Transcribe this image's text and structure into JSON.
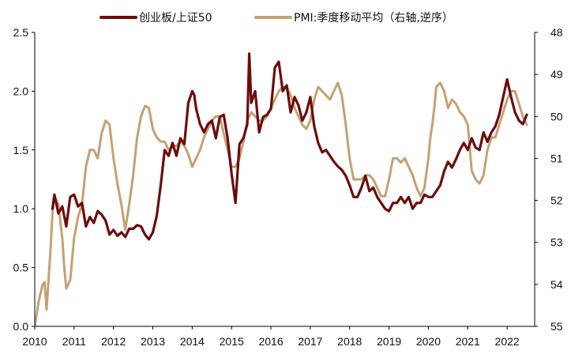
{
  "chart_data": {
    "type": "line",
    "title": "",
    "legend_position": "top",
    "grid": false,
    "x_ticks": [
      "2010",
      "2011",
      "2012",
      "2013",
      "2014",
      "2015",
      "2016",
      "2017",
      "2018",
      "2019",
      "2020",
      "2021",
      "2022"
    ],
    "xlim": [
      2010.0,
      2022.7
    ],
    "left_axis": {
      "range": [
        0.0,
        2.5
      ],
      "ticks": [
        "0.0",
        "0.5",
        "1.0",
        "1.5",
        "2.0",
        "2.5"
      ]
    },
    "right_axis": {
      "range": [
        48,
        55
      ],
      "inverted": true,
      "ticks": [
        "48",
        "49",
        "50",
        "51",
        "52",
        "53",
        "54",
        "55"
      ]
    },
    "series": [
      {
        "name": "创业板/上证50",
        "axis": "left",
        "color": "#6b0d0d",
        "x": [
          2010.45,
          2010.5,
          2010.6,
          2010.7,
          2010.8,
          2010.9,
          2011.0,
          2011.1,
          2011.2,
          2011.3,
          2011.4,
          2011.5,
          2011.6,
          2011.7,
          2011.8,
          2011.9,
          2012.0,
          2012.1,
          2012.2,
          2012.3,
          2012.4,
          2012.5,
          2012.6,
          2012.7,
          2012.8,
          2012.9,
          2013.0,
          2013.1,
          2013.2,
          2013.3,
          2013.4,
          2013.5,
          2013.6,
          2013.7,
          2013.8,
          2013.9,
          2014.0,
          2014.05,
          2014.1,
          2014.2,
          2014.3,
          2014.4,
          2014.5,
          2014.6,
          2014.7,
          2014.8,
          2014.9,
          2015.0,
          2015.1,
          2015.2,
          2015.3,
          2015.4,
          2015.45,
          2015.5,
          2015.6,
          2015.7,
          2015.8,
          2015.9,
          2016.0,
          2016.1,
          2016.2,
          2016.3,
          2016.4,
          2016.5,
          2016.6,
          2016.7,
          2016.8,
          2016.9,
          2017.0,
          2017.1,
          2017.2,
          2017.3,
          2017.4,
          2017.5,
          2017.6,
          2017.7,
          2017.8,
          2017.9,
          2018.0,
          2018.1,
          2018.2,
          2018.3,
          2018.4,
          2018.5,
          2018.6,
          2018.7,
          2018.8,
          2018.9,
          2019.0,
          2019.1,
          2019.2,
          2019.3,
          2019.4,
          2019.5,
          2019.6,
          2019.7,
          2019.8,
          2019.9,
          2020.0,
          2020.1,
          2020.2,
          2020.3,
          2020.4,
          2020.5,
          2020.6,
          2020.7,
          2020.8,
          2020.9,
          2021.0,
          2021.1,
          2021.2,
          2021.3,
          2021.4,
          2021.5,
          2021.6,
          2021.7,
          2021.8,
          2021.9,
          2022.0,
          2022.1,
          2022.2,
          2022.3,
          2022.4,
          2022.5
        ],
        "values": [
          1.0,
          1.12,
          0.96,
          1.02,
          0.85,
          1.1,
          1.12,
          1.02,
          1.05,
          0.85,
          0.93,
          0.88,
          0.98,
          0.95,
          0.9,
          0.78,
          0.82,
          0.77,
          0.8,
          0.76,
          0.83,
          0.83,
          0.86,
          0.85,
          0.78,
          0.74,
          0.8,
          0.94,
          1.2,
          1.5,
          1.45,
          1.56,
          1.45,
          1.6,
          1.55,
          1.9,
          2.0,
          1.97,
          1.85,
          1.72,
          1.65,
          1.72,
          1.75,
          1.6,
          1.78,
          1.8,
          1.6,
          1.3,
          1.05,
          1.55,
          1.6,
          1.72,
          2.32,
          1.9,
          2.0,
          1.65,
          1.78,
          1.8,
          1.85,
          2.2,
          2.25,
          2.0,
          2.05,
          1.82,
          1.95,
          1.88,
          1.75,
          1.82,
          1.95,
          1.7,
          1.56,
          1.48,
          1.5,
          1.45,
          1.4,
          1.36,
          1.33,
          1.28,
          1.2,
          1.1,
          1.1,
          1.18,
          1.28,
          1.15,
          1.18,
          1.1,
          1.05,
          1.0,
          0.98,
          1.05,
          1.05,
          1.1,
          1.05,
          1.1,
          1.0,
          1.05,
          1.05,
          1.12,
          1.1,
          1.1,
          1.15,
          1.2,
          1.32,
          1.4,
          1.35,
          1.42,
          1.5,
          1.56,
          1.5,
          1.6,
          1.52,
          1.5,
          1.65,
          1.57,
          1.65,
          1.7,
          1.8,
          1.95,
          2.1,
          1.95,
          1.82,
          1.75,
          1.72,
          1.8
        ]
      },
      {
        "name": "PMI:季度移动平均（右轴,逆序）",
        "axis": "right",
        "color": "#c4a173",
        "x": [
          2010.0,
          2010.1,
          2010.2,
          2010.25,
          2010.3,
          2010.4,
          2010.45,
          2010.5,
          2010.6,
          2010.7,
          2010.75,
          2010.8,
          2010.9,
          2011.0,
          2011.1,
          2011.2,
          2011.3,
          2011.4,
          2011.5,
          2011.6,
          2011.7,
          2011.8,
          2011.9,
          2012.0,
          2012.1,
          2012.2,
          2012.3,
          2012.4,
          2012.5,
          2012.6,
          2012.7,
          2012.8,
          2012.9,
          2013.0,
          2013.1,
          2013.2,
          2013.3,
          2013.4,
          2013.5,
          2013.6,
          2013.7,
          2013.8,
          2013.9,
          2014.0,
          2014.1,
          2014.2,
          2014.3,
          2014.4,
          2014.5,
          2014.6,
          2014.7,
          2014.8,
          2014.9,
          2015.0,
          2015.1,
          2015.2,
          2015.3,
          2015.4,
          2015.5,
          2015.6,
          2015.7,
          2015.8,
          2015.9,
          2016.0,
          2016.1,
          2016.2,
          2016.3,
          2016.4,
          2016.5,
          2016.6,
          2016.7,
          2016.8,
          2016.9,
          2017.0,
          2017.1,
          2017.2,
          2017.3,
          2017.4,
          2017.5,
          2017.6,
          2017.7,
          2017.8,
          2017.9,
          2018.0,
          2018.1,
          2018.2,
          2018.3,
          2018.4,
          2018.5,
          2018.6,
          2018.7,
          2018.8,
          2018.9,
          2019.0,
          2019.1,
          2019.2,
          2019.3,
          2019.4,
          2019.5,
          2019.6,
          2019.7,
          2019.8,
          2019.9,
          2020.0,
          2020.05,
          2020.1,
          2020.15,
          2020.2,
          2020.3,
          2020.4,
          2020.5,
          2020.6,
          2020.7,
          2020.8,
          2020.9,
          2021.0,
          2021.1,
          2021.2,
          2021.3,
          2021.4,
          2021.5,
          2021.6,
          2021.7,
          2021.8,
          2021.9,
          2022.0,
          2022.1,
          2022.2,
          2022.3,
          2022.4,
          2022.5
        ],
        "values": [
          55.0,
          54.4,
          54.0,
          53.95,
          54.6,
          53.2,
          52.3,
          51.9,
          52.1,
          52.9,
          53.6,
          54.1,
          53.9,
          52.9,
          52.4,
          52.1,
          51.2,
          50.8,
          50.8,
          51.0,
          50.4,
          50.1,
          50.2,
          51.0,
          51.6,
          52.1,
          52.7,
          52.1,
          51.4,
          50.5,
          50.0,
          49.75,
          49.8,
          50.3,
          50.5,
          50.6,
          50.6,
          50.8,
          50.7,
          50.7,
          50.6,
          50.7,
          50.9,
          51.2,
          51.0,
          50.8,
          50.5,
          50.3,
          50.1,
          50.0,
          50.0,
          50.4,
          50.8,
          51.2,
          51.2,
          51.0,
          50.6,
          50.1,
          49.9,
          50.0,
          50.1,
          50.1,
          50.0,
          49.8,
          49.6,
          49.4,
          49.3,
          49.3,
          49.5,
          49.8,
          50.0,
          50.2,
          50.3,
          50.1,
          49.6,
          49.3,
          49.4,
          49.5,
          49.6,
          49.4,
          49.2,
          49.5,
          50.2,
          51.0,
          51.5,
          51.5,
          51.5,
          51.4,
          51.4,
          51.5,
          51.7,
          51.9,
          51.9,
          51.5,
          51.0,
          51.0,
          51.1,
          51.0,
          51.2,
          51.4,
          51.7,
          51.9,
          51.7,
          51.0,
          50.5,
          50.2,
          49.8,
          49.3,
          49.2,
          49.4,
          49.8,
          49.6,
          49.7,
          49.9,
          50.0,
          50.2,
          51.3,
          51.5,
          51.6,
          51.4,
          50.8,
          50.5,
          50.5,
          50.2,
          49.9,
          49.6,
          49.4,
          49.4,
          49.7,
          50.0,
          50.2
        ]
      }
    ]
  }
}
